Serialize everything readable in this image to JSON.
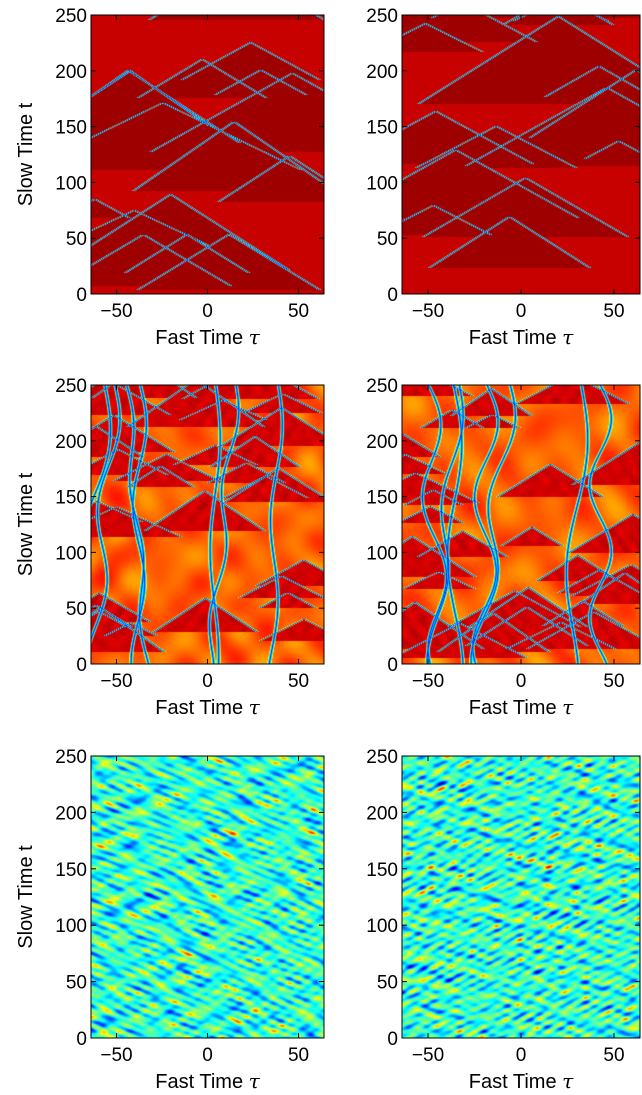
{
  "chart_data": [
    {
      "type": "heatmap",
      "pattern": "triangles",
      "xlabel_text": "Fast Time ",
      "xlabel_sym": "τ",
      "ylabel": "Slow Time t",
      "xlim": [
        -64,
        64
      ],
      "ylim": [
        0,
        250
      ],
      "xticks": [
        "-50",
        "0",
        "50"
      ],
      "yticks": [
        "0",
        "50",
        "100",
        "150",
        "200",
        "250"
      ],
      "colormap": "jet"
    },
    {
      "type": "heatmap",
      "pattern": "triangles",
      "xlabel_text": "Fast Time ",
      "xlabel_sym": "τ",
      "ylabel": "",
      "xlim": [
        -64,
        64
      ],
      "ylim": [
        0,
        250
      ],
      "xticks": [
        "-50",
        "0",
        "50"
      ],
      "yticks": [
        "0",
        "50",
        "100",
        "150",
        "200",
        "250"
      ],
      "colormap": "jet"
    },
    {
      "type": "heatmap",
      "pattern": "mixed",
      "xlabel_text": "Fast Time ",
      "xlabel_sym": "τ",
      "ylabel": "Slow Time t",
      "xlim": [
        -64,
        64
      ],
      "ylim": [
        0,
        250
      ],
      "xticks": [
        "-50",
        "0",
        "50"
      ],
      "yticks": [
        "0",
        "50",
        "100",
        "150",
        "200",
        "250"
      ],
      "colormap": "jet"
    },
    {
      "type": "heatmap",
      "pattern": "mixed",
      "xlabel_text": "Fast Time ",
      "xlabel_sym": "τ",
      "ylabel": "",
      "xlim": [
        -64,
        64
      ],
      "ylim": [
        0,
        250
      ],
      "xticks": [
        "-50",
        "0",
        "50"
      ],
      "yticks": [
        "0",
        "50",
        "100",
        "150",
        "200",
        "250"
      ],
      "colormap": "jet"
    },
    {
      "type": "heatmap",
      "pattern": "turbulent",
      "xlabel_text": "Fast Time ",
      "xlabel_sym": "τ",
      "ylabel": "Slow Time t",
      "xlim": [
        -64,
        64
      ],
      "ylim": [
        0,
        250
      ],
      "xticks": [
        "-50",
        "0",
        "50"
      ],
      "yticks": [
        "0",
        "50",
        "100",
        "150",
        "200",
        "250"
      ],
      "colormap": "jet"
    },
    {
      "type": "heatmap",
      "pattern": "turbulent",
      "xlabel_text": "Fast Time ",
      "xlabel_sym": "τ",
      "ylabel": "",
      "xlim": [
        -64,
        64
      ],
      "ylim": [
        0,
        250
      ],
      "xticks": [
        "-50",
        "0",
        "50"
      ],
      "yticks": [
        "0",
        "50",
        "100",
        "150",
        "200",
        "250"
      ],
      "colormap": "jet"
    }
  ]
}
